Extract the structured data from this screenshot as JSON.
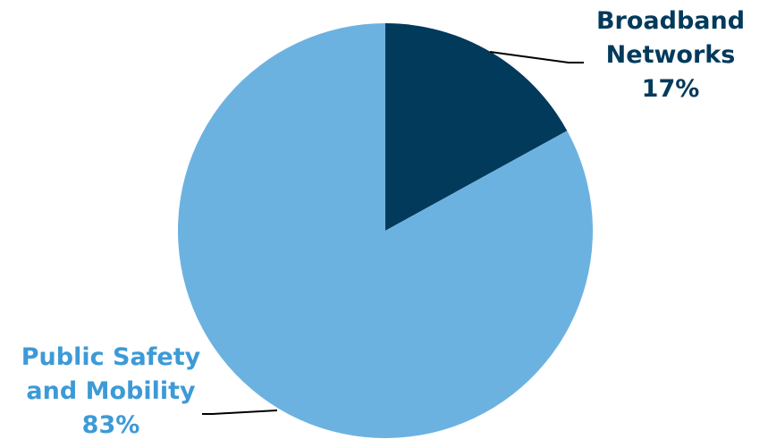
{
  "chart_data": {
    "type": "pie",
    "title": "",
    "legend": "none",
    "slices": [
      {
        "name": "Broadband Networks",
        "label_lines": [
          "Broadband",
          "Networks"
        ],
        "value": 17,
        "percent_label": "17%",
        "color": "#023a5c",
        "label_color": "#023a5c"
      },
      {
        "name": "Public Safety and Mobility",
        "label_lines": [
          "Public Safety",
          "and Mobility"
        ],
        "value": 83,
        "percent_label": "83%",
        "color": "#6cb2e0",
        "label_color": "#3d9ad6"
      }
    ]
  }
}
